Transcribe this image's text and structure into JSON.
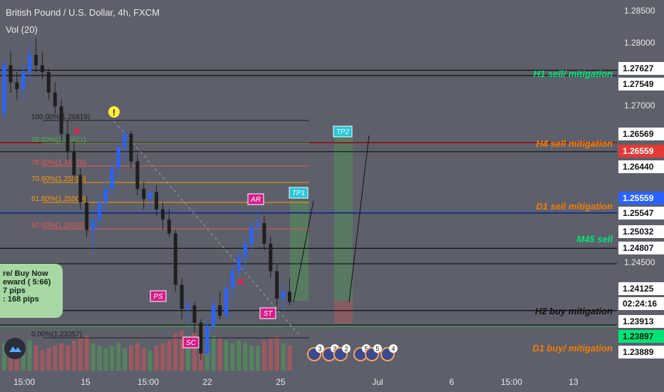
{
  "header": {
    "title": "British Pound / U.S. Dollar, 4h, FXCM",
    "volume_label": "Vol (20)"
  },
  "colors": {
    "background": "#5d606b",
    "bull": "#2962ff",
    "bear": "#1f1f1f",
    "green_zone": "#4caf50",
    "orange_text": "#f57c00",
    "green_text": "#00e676",
    "blue_line": "#2962ff",
    "red_line": "#e53935"
  },
  "price_axis": {
    "ticks": [
      "1.28500",
      "1.28000",
      "1.27000",
      "1.24500"
    ],
    "markers": [
      {
        "value": "1.27627",
        "style": "white"
      },
      {
        "value": "1.27549",
        "style": "white"
      },
      {
        "value": "1.26569",
        "style": "white"
      },
      {
        "value": "1.26559",
        "style": "red"
      },
      {
        "value": "1.26440",
        "style": "white"
      },
      {
        "value": "1.25559",
        "style": "blue"
      },
      {
        "value": "1.25547",
        "style": "white"
      },
      {
        "value": "1.25032",
        "style": "white"
      },
      {
        "value": "1.24807",
        "style": "white"
      },
      {
        "value": "1.24125",
        "style": "white"
      },
      {
        "value": "02:24:16",
        "style": "white"
      },
      {
        "value": "1.23913",
        "style": "white"
      },
      {
        "value": "1.23897",
        "style": "green"
      },
      {
        "value": "1.23889",
        "style": "white"
      }
    ]
  },
  "time_axis": {
    "labels": [
      "15:00",
      "15",
      "15:00",
      "22",
      "25",
      "Jul",
      "6",
      "15:00",
      "13"
    ]
  },
  "zone_labels": {
    "h1_sell": "H1 sell/ mitigation",
    "h4_sell": "H4 sell mitigation",
    "d1_sell": "D1 sell mitigation",
    "m45_sell": "M45 sell",
    "h2_buy": "H2 buy mitigation",
    "d1_buy": "D1 buy/ mitigation"
  },
  "fib_levels": [
    {
      "label": "100.00%(1.26819)",
      "color": "#1f1f1f"
    },
    {
      "label": "88.60%(1.26421)",
      "color": "#4caf50"
    },
    {
      "label": "78.60%(1.26078)",
      "color": "#ef5350"
    },
    {
      "label": "70.60%(1.25815)",
      "color": "#ff9800"
    },
    {
      "label": "61.80%(1.25509)",
      "color": "#ff9800"
    },
    {
      "label": "50.00%(1.25100)",
      "color": "#ef5350"
    },
    {
      "label": "0.00%(1.23357)",
      "color": "#1f1f1f"
    }
  ],
  "tags": {
    "tp1": "TP1",
    "tp2": "TP2",
    "ar": "AR",
    "st": "ST",
    "sc": "SC",
    "ps": "PS"
  },
  "callout": {
    "lines": [
      "re/ Buy Now",
      "eward ( 5:66)",
      "7 pips",
      ": 168 pips"
    ]
  },
  "events": {
    "counts": [
      "3",
      "3",
      "2",
      "5",
      "5",
      "4"
    ]
  },
  "chart_data": {
    "type": "candlestick",
    "title": "British Pound / U.S. Dollar, 4h, FXCM",
    "y_range": [
      1.2325,
      1.2865
    ],
    "candles": [
      [
        1.27,
        1.278,
        1.269,
        1.277
      ],
      [
        1.277,
        1.279,
        1.273,
        1.2745
      ],
      [
        1.2745,
        1.276,
        1.272,
        1.2735
      ],
      [
        1.2735,
        1.277,
        1.272,
        1.276
      ],
      [
        1.276,
        1.28,
        1.2745,
        1.2785
      ],
      [
        1.2785,
        1.281,
        1.276,
        1.277
      ],
      [
        1.277,
        1.279,
        1.275,
        1.276
      ],
      [
        1.276,
        1.2765,
        1.272,
        1.273
      ],
      [
        1.273,
        1.2745,
        1.27,
        1.271
      ],
      [
        1.271,
        1.272,
        1.266,
        1.267
      ],
      [
        1.267,
        1.269,
        1.263,
        1.2645
      ],
      [
        1.2645,
        1.266,
        1.26,
        1.261
      ],
      [
        1.261,
        1.262,
        1.256,
        1.257
      ],
      [
        1.257,
        1.258,
        1.252,
        1.253
      ],
      [
        1.253,
        1.256,
        1.25,
        1.2545
      ],
      [
        1.2545,
        1.258,
        1.253,
        1.257
      ],
      [
        1.257,
        1.26,
        1.2555,
        1.259
      ],
      [
        1.259,
        1.263,
        1.258,
        1.262
      ],
      [
        1.262,
        1.266,
        1.261,
        1.265
      ],
      [
        1.265,
        1.268,
        1.263,
        1.267
      ],
      [
        1.267,
        1.2675,
        1.262,
        1.263
      ],
      [
        1.263,
        1.264,
        1.258,
        1.259
      ],
      [
        1.259,
        1.26,
        1.256,
        1.2575
      ],
      [
        1.2575,
        1.259,
        1.256,
        1.2585
      ],
      [
        1.2585,
        1.2595,
        1.255,
        1.256
      ],
      [
        1.256,
        1.257,
        1.253,
        1.2545
      ],
      [
        1.2545,
        1.256,
        1.252,
        1.2525
      ],
      [
        1.2525,
        1.253,
        1.244,
        1.245
      ],
      [
        1.245,
        1.246,
        1.24,
        1.2415
      ],
      [
        1.2415,
        1.243,
        1.239,
        1.242
      ],
      [
        1.242,
        1.2425,
        1.238,
        1.2395
      ],
      [
        1.2395,
        1.24,
        1.234,
        1.235
      ],
      [
        1.235,
        1.24,
        1.2345,
        1.239
      ],
      [
        1.239,
        1.243,
        1.238,
        1.242
      ],
      [
        1.242,
        1.244,
        1.24,
        1.2405
      ],
      [
        1.2405,
        1.245,
        1.24,
        1.2445
      ],
      [
        1.2445,
        1.248,
        1.243,
        1.247
      ],
      [
        1.247,
        1.25,
        1.246,
        1.249
      ],
      [
        1.249,
        1.252,
        1.247,
        1.251
      ],
      [
        1.251,
        1.2545,
        1.25,
        1.2535
      ],
      [
        1.2535,
        1.2555,
        1.252,
        1.254
      ],
      [
        1.254,
        1.255,
        1.25,
        1.251
      ],
      [
        1.251,
        1.252,
        1.246,
        1.247
      ],
      [
        1.247,
        1.248,
        1.242,
        1.243
      ],
      [
        1.243,
        1.245,
        1.241,
        1.244
      ],
      [
        1.244,
        1.246,
        1.242,
        1.2425
      ]
    ],
    "volume": [
      0.55,
      0.4,
      0.35,
      0.45,
      0.6,
      0.5,
      0.4,
      0.45,
      0.5,
      0.55,
      0.5,
      0.6,
      0.65,
      0.7,
      0.55,
      0.5,
      0.45,
      0.5,
      0.55,
      0.45,
      0.5,
      0.55,
      0.45,
      0.4,
      0.5,
      0.55,
      0.6,
      0.75,
      0.8,
      0.7,
      0.75,
      0.9,
      0.85,
      0.7,
      0.65,
      0.6,
      0.55,
      0.6,
      0.55,
      0.5,
      0.5,
      0.6,
      0.65,
      0.7,
      0.55,
      0.5
    ],
    "horizontal_levels": [
      1.27627,
      1.27549,
      1.26569,
      1.26559,
      1.2644,
      1.25559,
      1.25547,
      1.25032,
      1.24807,
      1.24125,
      1.23913,
      1.23897
    ],
    "targets": {
      "tp1": 1.2552,
      "tp2": 1.2658
    },
    "ylabel": "",
    "xlabel": ""
  }
}
